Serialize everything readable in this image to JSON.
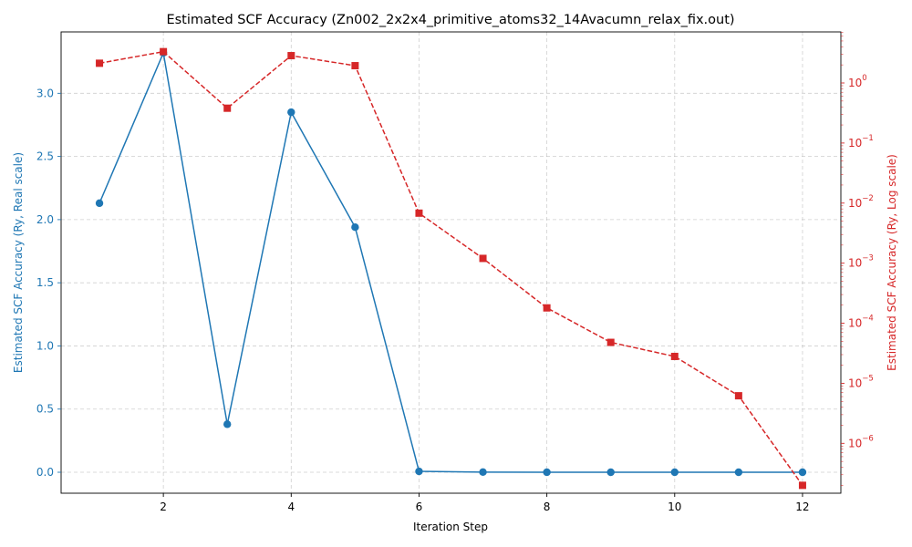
{
  "chart_data": {
    "type": "line",
    "title": "Estimated SCF Accuracy (Zn002_2x2x4_primitive_atoms32_14Avacumn_relax_fix.out)",
    "xlabel": "Iteration Step",
    "ylabel_left": "Estimated SCF Accuracy (Ry, Real scale)",
    "ylabel_right": "Estimated SCF Accuracy (Ry, Log scale)",
    "x": [
      1,
      2,
      3,
      4,
      5,
      6,
      7,
      8,
      9,
      10,
      11,
      12
    ],
    "series": [
      {
        "axis": "left",
        "scale": "linear",
        "color": "#1f77b4",
        "marker": "circle",
        "line_style": "solid",
        "values": [
          2.13,
          3.32,
          0.38,
          2.85,
          1.94,
          0.0068,
          0.0012,
          0.00018,
          4.8e-05,
          2.8e-05,
          6.2e-06,
          2e-07
        ]
      },
      {
        "axis": "right",
        "scale": "log",
        "color": "#d62728",
        "marker": "square",
        "line_style": "dashed",
        "values": [
          2.13,
          3.32,
          0.38,
          2.85,
          1.94,
          0.0068,
          0.0012,
          0.00018,
          4.8e-05,
          2.8e-05,
          6.2e-06,
          2e-07
        ]
      }
    ],
    "xlim": [
      0.4,
      12.6
    ],
    "ylim_left": [
      -0.166,
      3.486
    ],
    "ylim_right_exp": [
      -6.83,
      0.85
    ],
    "x_ticks": [
      2,
      4,
      6,
      8,
      10,
      12
    ],
    "y_ticks_left": [
      0.0,
      0.5,
      1.0,
      1.5,
      2.0,
      2.5,
      3.0
    ],
    "y_tick_labels_left": [
      "0.0",
      "0.5",
      "1.0",
      "1.5",
      "2.0",
      "2.5",
      "3.0"
    ],
    "y_ticks_right_exp": [
      -6,
      -5,
      -4,
      -3,
      -2,
      -1,
      0
    ],
    "grid": true,
    "left_axis_color": "#1f77b4",
    "right_axis_color": "#d62728"
  }
}
